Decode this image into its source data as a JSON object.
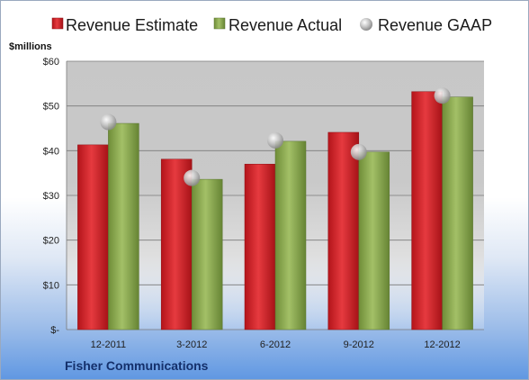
{
  "company": "Fisher Communications",
  "chart_data": {
    "type": "bar",
    "unit_label": "$millions",
    "categories": [
      "12-2011",
      "3-2012",
      "6-2012",
      "9-2012",
      "12-2012"
    ],
    "series": [
      {
        "name": "Revenue Estimate",
        "kind": "bar",
        "color": "#d8242a",
        "values": [
          41.3,
          38.1,
          37.0,
          44.1,
          53.2
        ]
      },
      {
        "name": "Revenue Actual",
        "kind": "bar",
        "color": "#8cac52",
        "values": [
          46.1,
          33.6,
          42.1,
          39.7,
          52.0
        ]
      },
      {
        "name": "Revenue GAAP",
        "kind": "marker",
        "color": "#c0c0c0",
        "values": [
          46.4,
          33.9,
          42.3,
          39.7,
          52.3
        ]
      }
    ],
    "y_ticks": [
      "$-",
      "$10",
      "$20",
      "$30",
      "$40",
      "$50",
      "$60"
    ],
    "ylim": [
      0,
      60
    ],
    "grid": true,
    "legend_position": "top"
  }
}
